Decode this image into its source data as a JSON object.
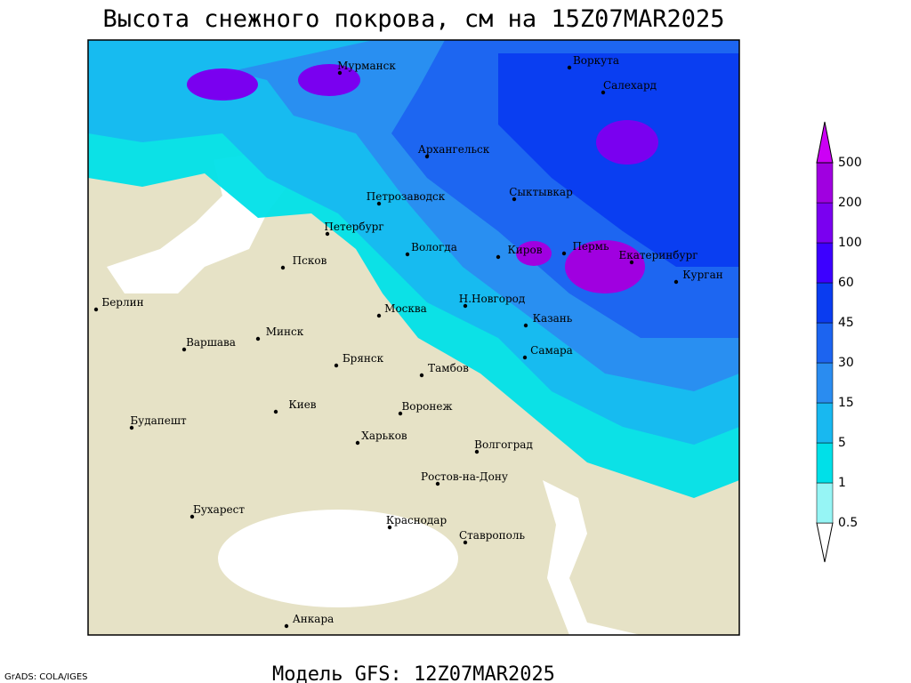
{
  "header": {
    "title": "Высота снежного покрова, см на 15Z07MAR2025"
  },
  "footer": {
    "model": "Модель GFS: 12Z07MAR2025",
    "credit": "GrADS: COLA/IGES"
  },
  "legend": {
    "levels": [
      0.5,
      1,
      5,
      15,
      30,
      45,
      60,
      100,
      200,
      500
    ],
    "colors": [
      "#ffffff",
      "#96f5f5",
      "#00e0e8",
      "#18b8f0",
      "#2a8cf0",
      "#1c64f0",
      "#0a3cf0",
      "#3c00ff",
      "#7a00f0",
      "#a000e0",
      "#cc00f5"
    ]
  },
  "cities": [
    "Мурманск",
    "Воркута",
    "Салехард",
    "Архангельск",
    "Петрозаводск",
    "Сыктывкар",
    "Петербург",
    "Вологда",
    "Киров",
    "Пермь",
    "Екатеринбург",
    "Курган",
    "Псков",
    "Берлин",
    "Москва",
    "Н.Новгород",
    "Казань",
    "Минск",
    "Варшава",
    "Брянск",
    "Тамбов",
    "Самара",
    "Киев",
    "Воронеж",
    "Будапешт",
    "Харьков",
    "Волгоград",
    "Ростов-на-Дону",
    "Бухарест",
    "Краснодар",
    "Ставрополь",
    "Анкара"
  ]
}
